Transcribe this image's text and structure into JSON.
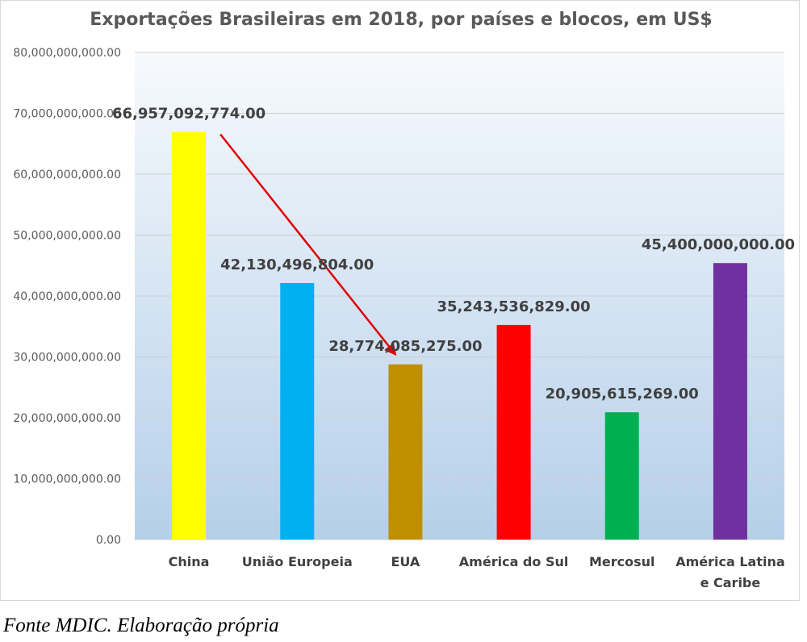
{
  "chart_data": {
    "type": "bar",
    "title": "Exportações Brasileiras em 2018, por países e blocos, em US$",
    "xlabel": "",
    "ylabel": "",
    "ylim": [
      0,
      80000000000
    ],
    "yticks": [
      0,
      10000000000,
      20000000000,
      30000000000,
      40000000000,
      50000000000,
      60000000000,
      70000000000,
      80000000000
    ],
    "ytick_labels": [
      "0.00",
      "10,000,000,000.00",
      "20,000,000,000.00",
      "30,000,000,000.00",
      "40,000,000,000.00",
      "50,000,000,000.00",
      "60,000,000,000.00",
      "70,000,000,000.00",
      "80,000,000,000.00"
    ],
    "grid": true,
    "legend": "none",
    "categories": [
      [
        "China"
      ],
      [
        "União Europeia"
      ],
      [
        "EUA"
      ],
      [
        "América do Sul"
      ],
      [
        "Mercosul"
      ],
      [
        "América Latina",
        "e Caribe"
      ]
    ],
    "values": [
      66957092774,
      42130496804,
      28774085275,
      35243536829,
      20905615269,
      45400000000
    ],
    "value_labels": [
      "66,957,092,774.00",
      "42,130,496,804.00",
      "28,774,085,275.00",
      "35,243,536,829.00",
      "20,905,615,269.00",
      "45,400,000,000.00"
    ],
    "colors": [
      "#ffff00",
      "#00b0f0",
      "#bf8f00",
      "#ff0000",
      "#00b050",
      "#7030a0"
    ],
    "annotation": {
      "type": "arrow",
      "from_category": 0,
      "to_category": 2,
      "color": "#e00000"
    }
  },
  "caption": "Fonte MDIC. Elaboração própria"
}
